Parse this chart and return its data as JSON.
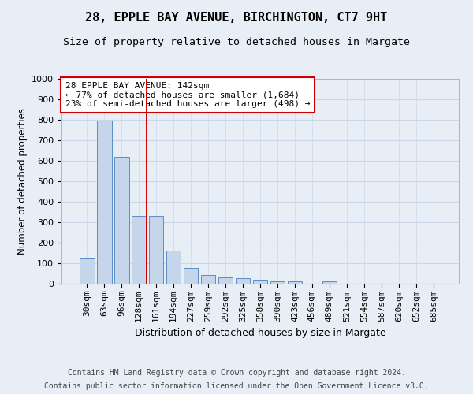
{
  "title1": "28, EPPLE BAY AVENUE, BIRCHINGTON, CT7 9HT",
  "title2": "Size of property relative to detached houses in Margate",
  "xlabel": "Distribution of detached houses by size in Margate",
  "ylabel": "Number of detached properties",
  "categories": [
    "30sqm",
    "63sqm",
    "96sqm",
    "128sqm",
    "161sqm",
    "194sqm",
    "227sqm",
    "259sqm",
    "292sqm",
    "325sqm",
    "358sqm",
    "390sqm",
    "423sqm",
    "456sqm",
    "489sqm",
    "521sqm",
    "554sqm",
    "587sqm",
    "620sqm",
    "652sqm",
    "685sqm"
  ],
  "values": [
    125,
    795,
    620,
    330,
    330,
    160,
    78,
    42,
    30,
    28,
    18,
    12,
    10,
    0,
    12,
    0,
    0,
    0,
    0,
    0,
    0
  ],
  "bar_color": "#c5d6ea",
  "bar_edge_color": "#5b8dc8",
  "grid_color": "#ccd6e8",
  "background_color": "#e8eef6",
  "vline_x": 3.43,
  "vline_color": "#cc0000",
  "annotation_text": "28 EPPLE BAY AVENUE: 142sqm\n← 77% of detached houses are smaller (1,684)\n23% of semi-detached houses are larger (498) →",
  "annotation_box_facecolor": "#ffffff",
  "annotation_box_edgecolor": "#cc0000",
  "ylim": [
    0,
    1000
  ],
  "yticks": [
    0,
    100,
    200,
    300,
    400,
    500,
    600,
    700,
    800,
    900,
    1000
  ],
  "footer_line1": "Contains HM Land Registry data © Crown copyright and database right 2024.",
  "footer_line2": "Contains public sector information licensed under the Open Government Licence v3.0.",
  "title1_fontsize": 11,
  "title2_fontsize": 9.5,
  "xlabel_fontsize": 9,
  "ylabel_fontsize": 8.5,
  "tick_fontsize": 8,
  "annotation_fontsize": 8,
  "footer_fontsize": 7
}
